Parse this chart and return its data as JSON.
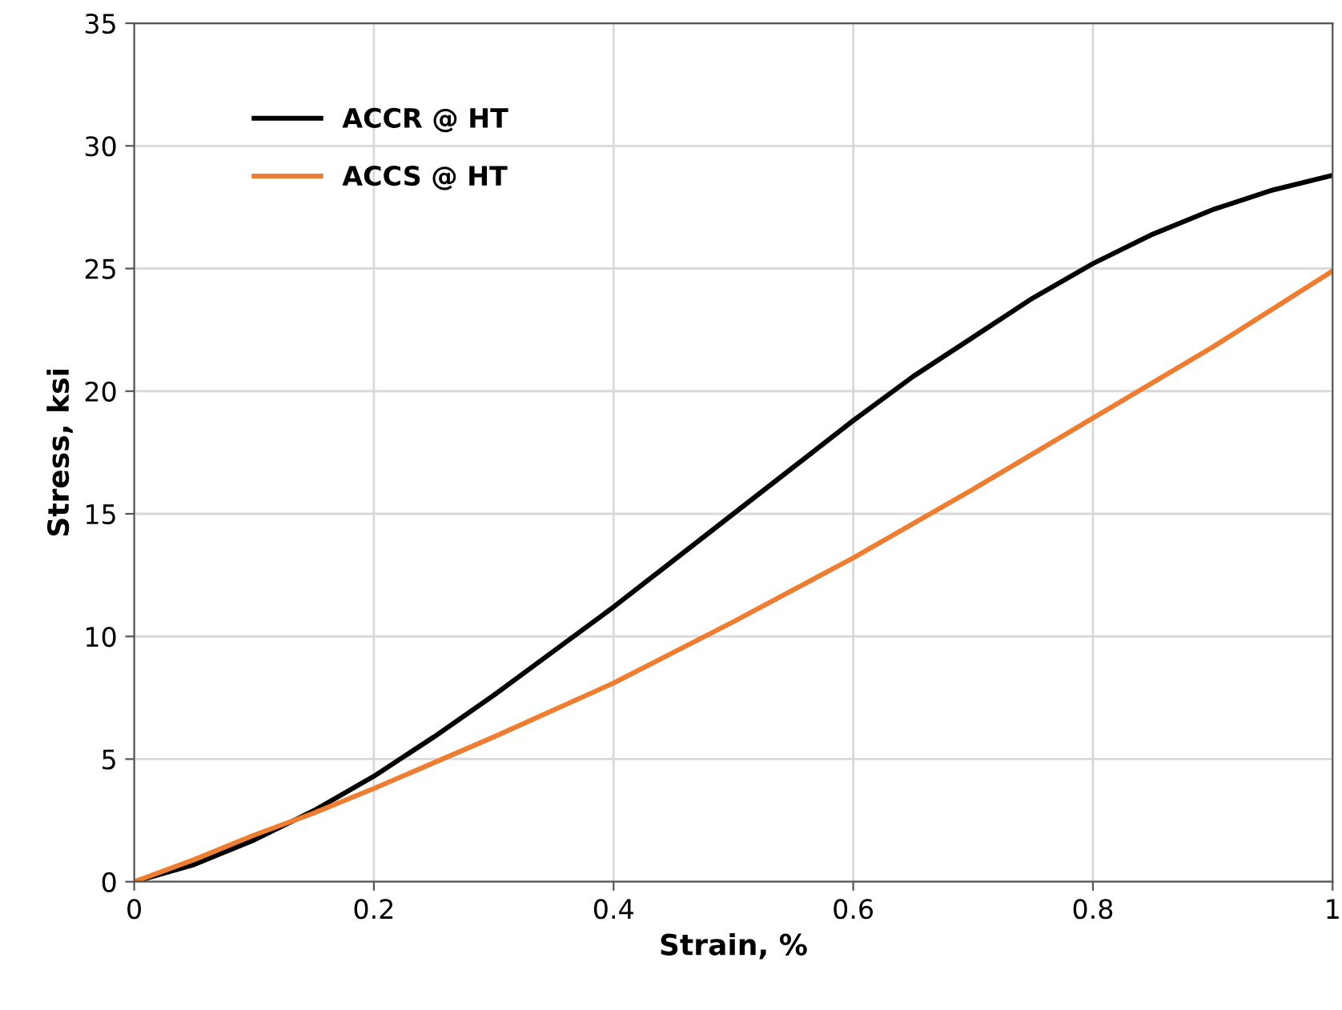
{
  "chart_data": {
    "type": "line",
    "xlabel": "Strain, %",
    "ylabel": "Stress, ksi",
    "xlim": [
      0,
      1
    ],
    "xticks": [
      0,
      0.2,
      0.4,
      0.6,
      0.8,
      1
    ],
    "ylim": [
      0,
      35
    ],
    "yticks": [
      0,
      5,
      10,
      15,
      20,
      25,
      30,
      35
    ],
    "grid": true,
    "legend": "top left",
    "marker": "none",
    "line_style": "solid",
    "series": [
      {
        "name": "ACCR @ HT",
        "color": "#000000",
        "x": [
          0,
          0.05,
          0.1,
          0.15,
          0.2,
          0.25,
          0.3,
          0.35,
          0.4,
          0.45,
          0.5,
          0.55,
          0.6,
          0.65,
          0.7,
          0.75,
          0.8,
          0.85,
          0.9,
          0.95,
          1.0
        ],
        "values": [
          0,
          0.7,
          1.7,
          2.9,
          4.3,
          5.9,
          7.6,
          9.4,
          11.2,
          13.1,
          15.0,
          16.9,
          18.8,
          20.6,
          22.2,
          23.8,
          25.2,
          26.4,
          27.4,
          28.2,
          28.8
        ]
      },
      {
        "name": "ACCS @ HT",
        "color": "#ed7d31",
        "x": [
          0,
          0.05,
          0.1,
          0.15,
          0.2,
          0.3,
          0.4,
          0.5,
          0.6,
          0.7,
          0.8,
          0.9,
          1.0
        ],
        "values": [
          0,
          0.9,
          1.9,
          2.8,
          3.8,
          5.9,
          8.1,
          10.6,
          13.2,
          16.0,
          18.9,
          21.8,
          24.9
        ]
      }
    ]
  }
}
